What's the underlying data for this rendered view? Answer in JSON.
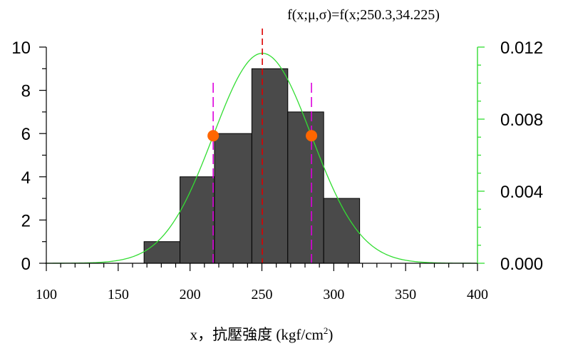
{
  "chart_data": {
    "type": "bar",
    "title": "f(x;μ,σ)=f(x;250.3,34.225)",
    "xlabel": "x，抗壓強度 (kgf/cm",
    "xlabel_sup": "2",
    "xlabel_close": ")",
    "xlim": [
      100,
      400
    ],
    "ylim": [
      0,
      10
    ],
    "y2lim": [
      0,
      0.012
    ],
    "x_ticks": [
      "100",
      "150",
      "200",
      "250",
      "300",
      "350",
      "400"
    ],
    "y_ticks": [
      "0",
      "2",
      "4",
      "6",
      "8",
      "10"
    ],
    "y2_ticks": [
      "0.000",
      "0.004",
      "0.008",
      "0.012"
    ],
    "bins": [
      {
        "x0": 168,
        "x1": 193,
        "count": 1
      },
      {
        "x0": 193,
        "x1": 217,
        "count": 4
      },
      {
        "x0": 217,
        "x1": 243,
        "count": 6
      },
      {
        "x0": 243,
        "x1": 268,
        "count": 9
      },
      {
        "x0": 268,
        "x1": 293,
        "count": 7
      },
      {
        "x0": 293,
        "x1": 318,
        "count": 3
      }
    ],
    "normal_curve": {
      "mu": 250.3,
      "sigma": 34.225,
      "color": "#33dd33"
    },
    "mean_line": {
      "x": 250.3,
      "color": "#dd0000"
    },
    "sigma_lines": {
      "x": [
        216.1,
        284.5
      ],
      "color": "#dd00dd"
    },
    "inflection_points": {
      "x": [
        216.1,
        284.5
      ],
      "y": 5.9,
      "color": "#ff6600"
    },
    "bar_color": "#4a4a4a",
    "right_axis_color": "#33dd33",
    "grid": false
  }
}
